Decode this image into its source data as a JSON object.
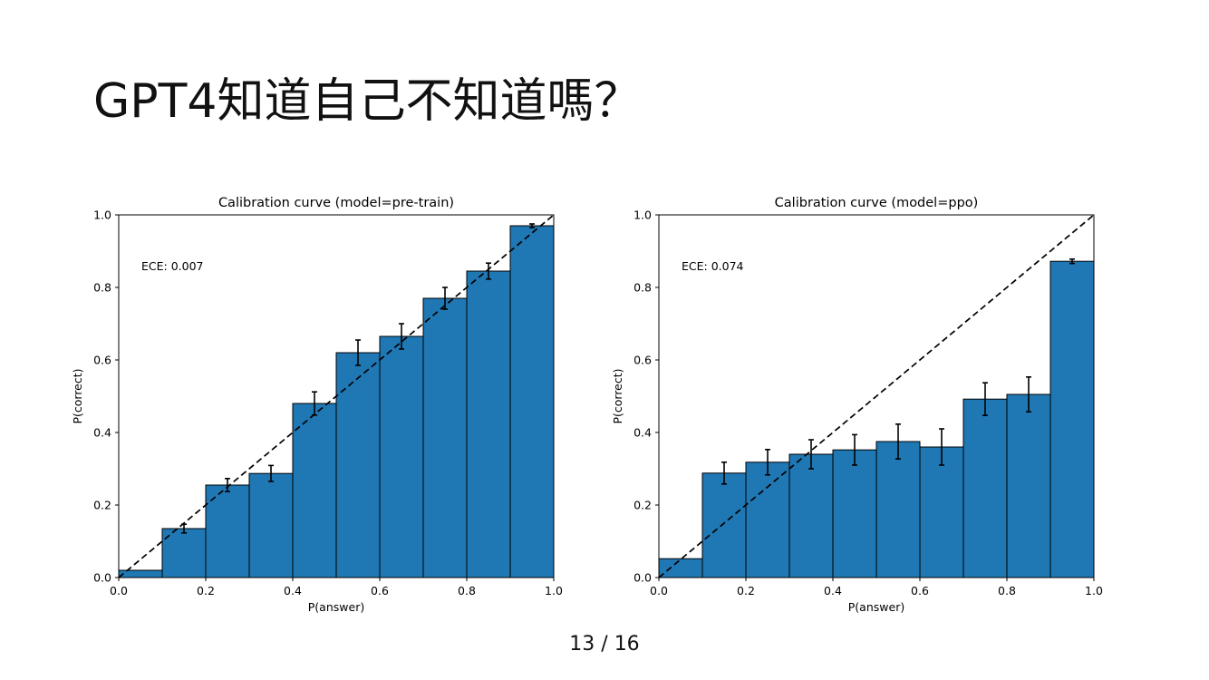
{
  "slide": {
    "title": "GPT4知道自己不知道嗎？",
    "page_number": "13 / 16"
  },
  "chart_data": [
    {
      "type": "bar",
      "title": "Calibration curve (model=pre-train)",
      "xlabel": "P(answer)",
      "ylabel": "P(correct)",
      "xlim": [
        0,
        1
      ],
      "ylim": [
        0,
        1
      ],
      "xticks": [
        "0.0",
        "0.2",
        "0.4",
        "0.6",
        "0.8",
        "1.0"
      ],
      "yticks": [
        "0.0",
        "0.2",
        "0.4",
        "0.6",
        "0.8",
        "1.0"
      ],
      "annotation": "ECE: 0.007",
      "bin_edges": [
        0.0,
        0.1,
        0.2,
        0.3,
        0.4,
        0.5,
        0.6,
        0.7,
        0.8,
        0.9,
        1.0
      ],
      "values": [
        0.02,
        0.135,
        0.255,
        0.287,
        0.48,
        0.62,
        0.665,
        0.77,
        0.845,
        0.97
      ],
      "error": [
        0,
        0.012,
        0.018,
        0.022,
        0.032,
        0.035,
        0.035,
        0.03,
        0.022,
        0.005
      ],
      "reference_line": "diagonal dashed",
      "bar_color": "#1f77b4"
    },
    {
      "type": "bar",
      "title": "Calibration curve (model=ppo)",
      "xlabel": "P(answer)",
      "ylabel": "P(correct)",
      "xlim": [
        0,
        1
      ],
      "ylim": [
        0,
        1
      ],
      "xticks": [
        "0.0",
        "0.2",
        "0.4",
        "0.6",
        "0.8",
        "1.0"
      ],
      "yticks": [
        "0.0",
        "0.2",
        "0.4",
        "0.6",
        "0.8",
        "1.0"
      ],
      "annotation": "ECE: 0.074",
      "bin_edges": [
        0.0,
        0.1,
        0.2,
        0.3,
        0.4,
        0.5,
        0.6,
        0.7,
        0.8,
        0.9,
        1.0
      ],
      "values": [
        0.052,
        0.288,
        0.318,
        0.34,
        0.352,
        0.375,
        0.36,
        0.492,
        0.505,
        0.872
      ],
      "error": [
        0,
        0.03,
        0.035,
        0.04,
        0.042,
        0.048,
        0.05,
        0.045,
        0.048,
        0.006
      ],
      "reference_line": "diagonal dashed",
      "bar_color": "#1f77b4"
    }
  ]
}
